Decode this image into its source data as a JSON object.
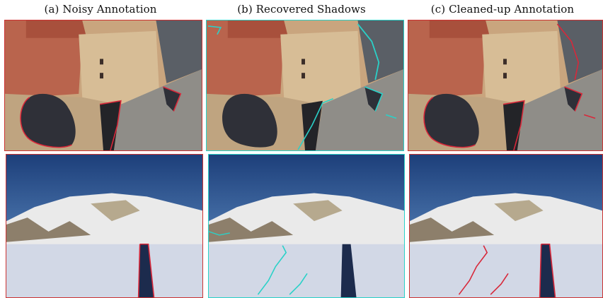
{
  "figure": {
    "columns": [
      {
        "caption": "(a) Noisy Annotation",
        "outline_color": "#d8283a"
      },
      {
        "caption": "(b) Recovered Shadows",
        "outline_color": "#2ad1c8"
      },
      {
        "caption": "(c) Cleaned-up Annotation",
        "outline_color": "#d8283a"
      }
    ],
    "rows": [
      {
        "scene": "aerial-rooftop-with-shadows"
      },
      {
        "scene": "snowy-mountain-with-person-shadow"
      }
    ]
  }
}
